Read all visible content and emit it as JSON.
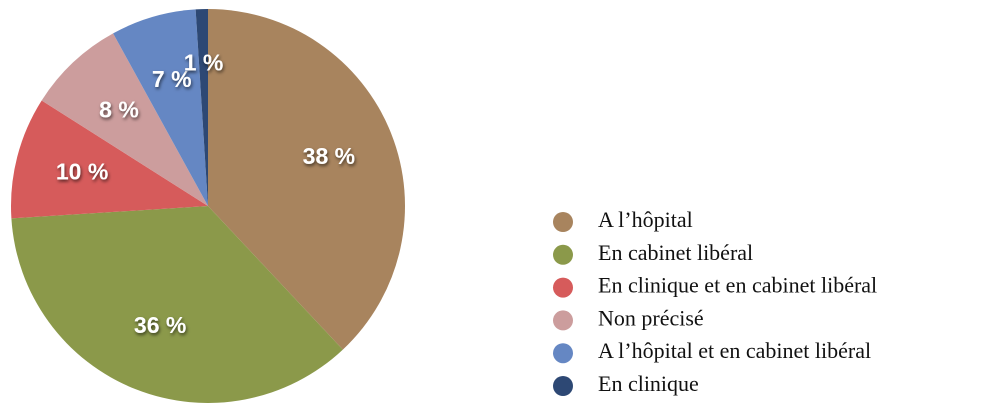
{
  "chart_data": {
    "type": "pie",
    "categories": [
      "A l’hôpital",
      "En cabinet libéral",
      "En clinique et en cabinet libéral",
      "Non précisé",
      "A l’hôpital et en cabinet libéral",
      "En clinique"
    ],
    "values": [
      38,
      36,
      10,
      8,
      7,
      1
    ],
    "value_labels": [
      "38 %",
      "36 %",
      "10 %",
      "8 %",
      "7 %",
      "1 %"
    ],
    "colors": [
      "#a8845e",
      "#8b994a",
      "#d65b5b",
      "#cc9d9d",
      "#6587c3",
      "#2d4874"
    ],
    "legend": "right"
  }
}
